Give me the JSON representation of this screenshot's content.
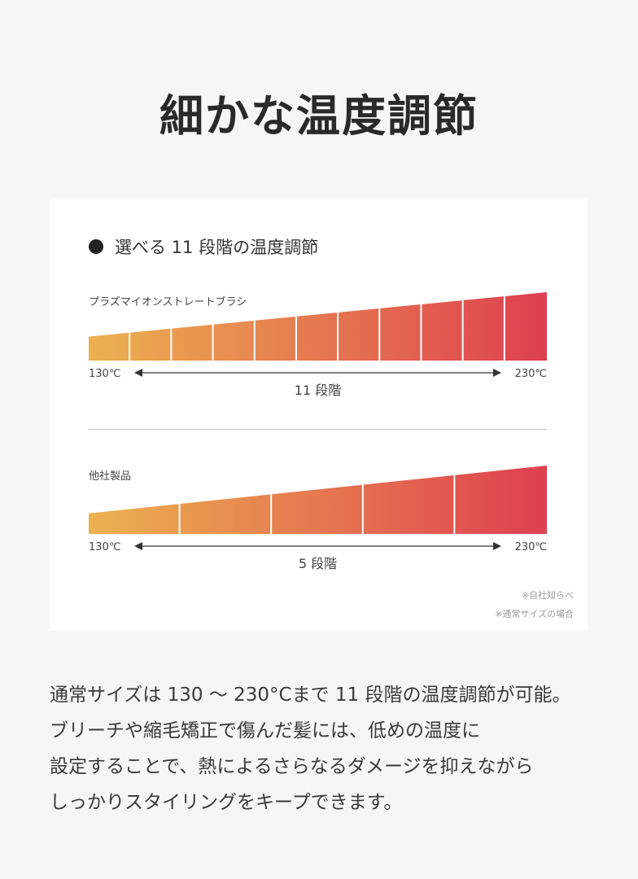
{
  "title": "細かな温度調節",
  "card": {
    "heading": "選べる 11 段階の温度調節",
    "charts": [
      {
        "label": "プラズマイオンストレートブラシ",
        "min_label": "130℃",
        "max_label": "230℃",
        "steps_label": "11 段階",
        "steps": 11,
        "start_level": 0.35,
        "end_level": 1.0
      },
      {
        "label": "他社製品",
        "min_label": "130℃",
        "max_label": "230℃",
        "steps_label": "5 段階",
        "steps": 5,
        "start_level": 0.3,
        "end_level": 1.0
      }
    ],
    "notes": [
      "※自社知らべ",
      "※通常サイズの場合"
    ]
  },
  "description": [
    "通常サイズは 130 ～ 230°Cまで 11 段階の温度調節が可能。",
    "ブリーチや縮毛矯正で傷んだ髪には、低めの温度に",
    "設定することで、熱によるさらなるダメージを抑えながら",
    "しっかりスタイリングをキープできます。"
  ],
  "colors": {
    "gradient_start": "#ecb150",
    "gradient_end": "#de3f50",
    "bars_bg": "#ffffff"
  }
}
